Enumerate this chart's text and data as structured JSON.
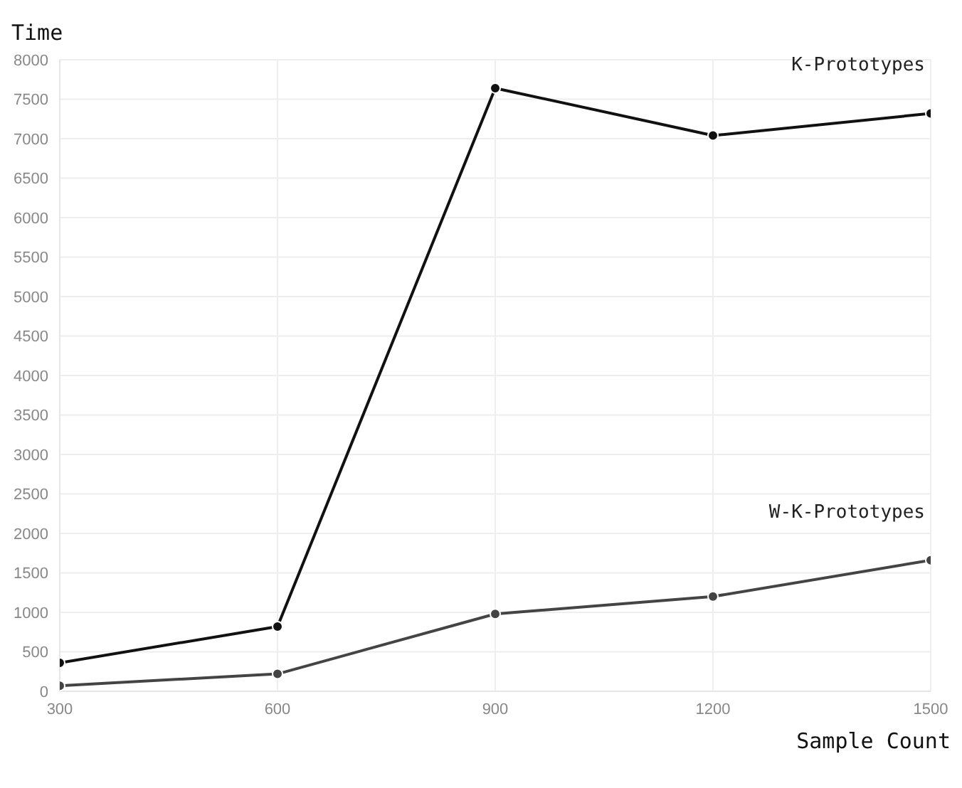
{
  "chart_data": {
    "type": "line",
    "xlabel": "Sample Count",
    "ylabel": "Time",
    "x": [
      300,
      600,
      900,
      1200,
      1500
    ],
    "series": [
      {
        "name": "K-Prototypes",
        "color": "#111111",
        "values": [
          360,
          820,
          7640,
          7040,
          7320
        ]
      },
      {
        "name": "W-K-Prototypes",
        "color": "#444444",
        "values": [
          70,
          220,
          980,
          1200,
          1660
        ]
      }
    ],
    "xlim": [
      300,
      1500
    ],
    "xticks": [
      300,
      600,
      900,
      1200,
      1500
    ],
    "ylim": [
      0,
      8000
    ],
    "yticks": [
      0,
      500,
      1000,
      1500,
      2000,
      2500,
      3000,
      3500,
      4000,
      4500,
      5000,
      5500,
      6000,
      6500,
      7000,
      7500,
      8000
    ],
    "grid": true,
    "marker": "circle",
    "line_style": "solid"
  }
}
